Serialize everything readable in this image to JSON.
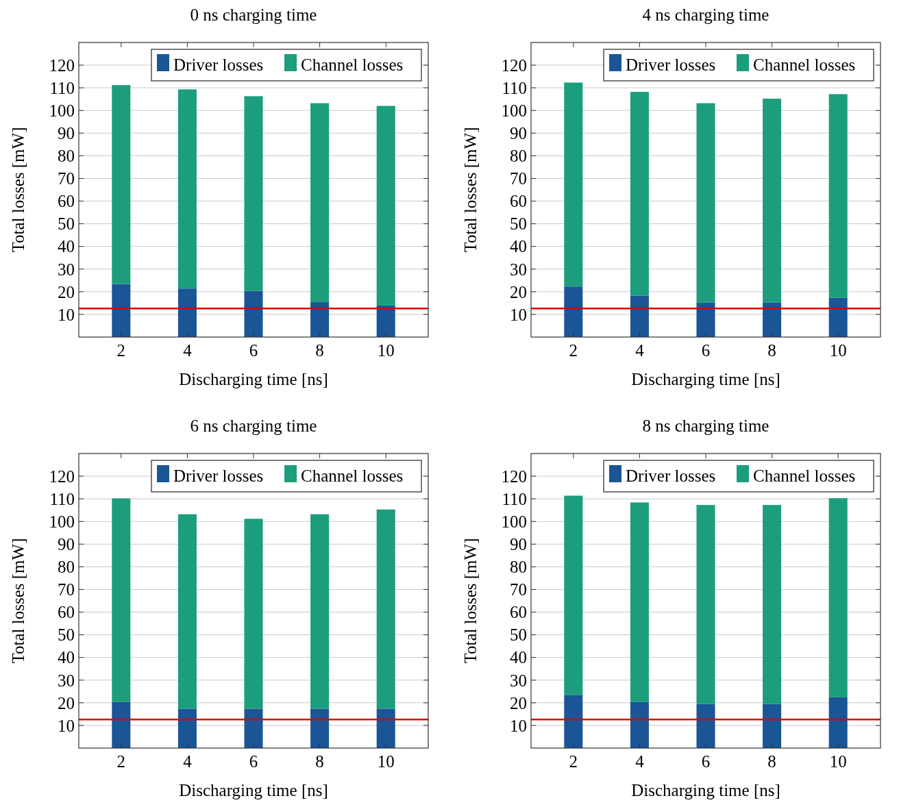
{
  "chart_data": [
    {
      "type": "bar",
      "title": "0 ns charging time",
      "xlabel": "Discharging time [ns]",
      "ylabel": "Total losses [mW]",
      "categories": [
        "2",
        "4",
        "6",
        "8",
        "10"
      ],
      "stacked": true,
      "series": [
        {
          "name": "Driver losses",
          "color": "#1a5596",
          "values": [
            23.4,
            21.4,
            20.4,
            15.4,
            14.1
          ]
        },
        {
          "name": "Channel losses",
          "color": "#1c9e7d",
          "values": [
            87.8,
            87.9,
            85.9,
            87.8,
            87.9
          ]
        }
      ],
      "ylim": [
        0,
        130
      ],
      "yticks": [
        10,
        20,
        30,
        40,
        50,
        60,
        70,
        80,
        90,
        100,
        110,
        120
      ],
      "grid": "y",
      "legend": "top right",
      "ref_lines": [
        {
          "axis": "y",
          "value": 12.6,
          "color": "#e00000"
        }
      ]
    },
    {
      "type": "bar",
      "title": "4 ns charging time",
      "xlabel": "Discharging time [ns]",
      "ylabel": "Total losses [mW]",
      "categories": [
        "2",
        "4",
        "6",
        "8",
        "10"
      ],
      "stacked": true,
      "series": [
        {
          "name": "Driver losses",
          "color": "#1a5596",
          "values": [
            22.3,
            18.3,
            15.3,
            15.3,
            17.3
          ]
        },
        {
          "name": "Channel losses",
          "color": "#1c9e7d",
          "values": [
            90.0,
            89.9,
            87.9,
            89.9,
            89.9
          ]
        }
      ],
      "ylim": [
        0,
        130
      ],
      "yticks": [
        10,
        20,
        30,
        40,
        50,
        60,
        70,
        80,
        90,
        100,
        110,
        120
      ],
      "grid": "y",
      "legend": "top right",
      "ref_lines": [
        {
          "axis": "y",
          "value": 12.6,
          "color": "#e00000"
        }
      ]
    },
    {
      "type": "bar",
      "title": "6 ns charging time",
      "xlabel": "Discharging time [ns]",
      "ylabel": "Total losses [mW]",
      "categories": [
        "2",
        "4",
        "6",
        "8",
        "10"
      ],
      "stacked": true,
      "series": [
        {
          "name": "Driver losses",
          "color": "#1a5596",
          "values": [
            20.3,
            17.4,
            17.4,
            17.4,
            17.4
          ]
        },
        {
          "name": "Channel losses",
          "color": "#1c9e7d",
          "values": [
            89.9,
            85.8,
            83.8,
            85.8,
            87.9
          ]
        }
      ],
      "ylim": [
        0,
        130
      ],
      "yticks": [
        10,
        20,
        30,
        40,
        50,
        60,
        70,
        80,
        90,
        100,
        110,
        120
      ],
      "grid": "y",
      "legend": "top right",
      "ref_lines": [
        {
          "axis": "y",
          "value": 12.6,
          "color": "#e00000"
        }
      ]
    },
    {
      "type": "bar",
      "title": "8 ns charging time",
      "xlabel": "Discharging time [ns]",
      "ylabel": "Total losses [mW]",
      "categories": [
        "2",
        "4",
        "6",
        "8",
        "10"
      ],
      "stacked": true,
      "series": [
        {
          "name": "Driver losses",
          "color": "#1a5596",
          "values": [
            23.3,
            20.3,
            19.4,
            19.4,
            22.4
          ]
        },
        {
          "name": "Channel losses",
          "color": "#1c9e7d",
          "values": [
            88.1,
            88.1,
            87.9,
            87.9,
            87.9
          ]
        }
      ],
      "ylim": [
        0,
        130
      ],
      "yticks": [
        10,
        20,
        30,
        40,
        50,
        60,
        70,
        80,
        90,
        100,
        110,
        120
      ],
      "grid": "y",
      "legend": "top right",
      "ref_lines": [
        {
          "axis": "y",
          "value": 12.6,
          "color": "#e00000"
        }
      ]
    }
  ]
}
